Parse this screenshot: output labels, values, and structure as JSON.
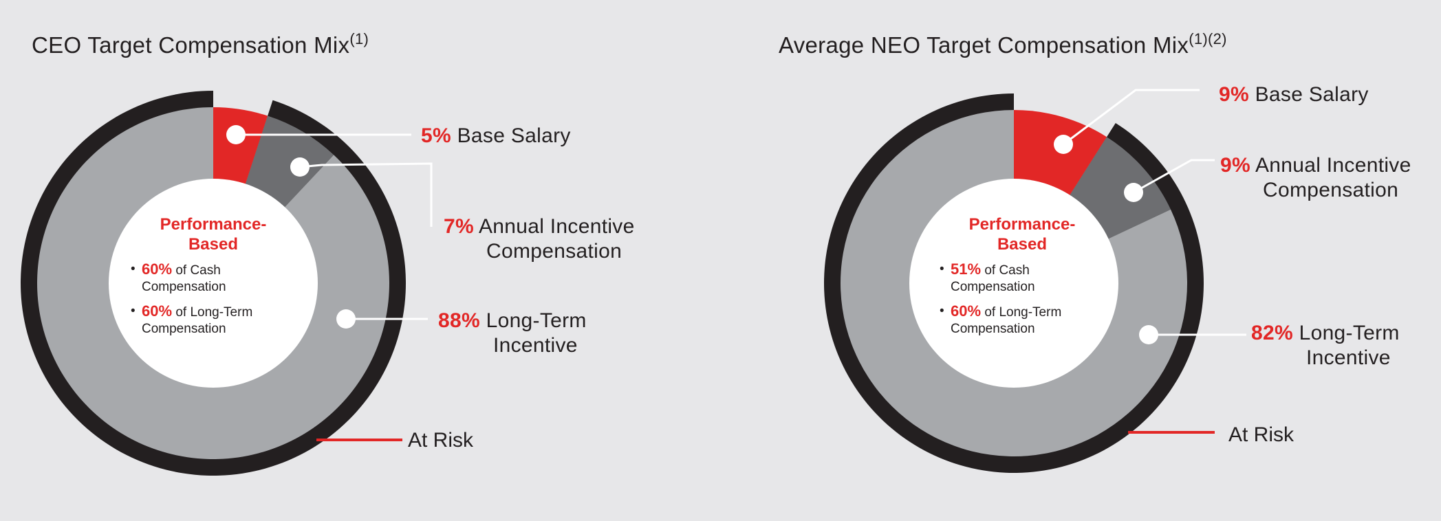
{
  "colors": {
    "background": "#e7e7e9",
    "base_salary": "#e22726",
    "annual_incentive": "#6d6e71",
    "long_term": "#a7a9ac",
    "at_risk_ring": "#231f20",
    "center": "#ffffff",
    "leader": "#ffffff",
    "at_risk_leader": "#e22726"
  },
  "chart_data": [
    {
      "type": "pie",
      "title": "CEO Target Compensation Mix",
      "title_sup": "(1)",
      "slices": [
        {
          "label": "Base Salary",
          "label_line2": "",
          "value": 5,
          "display": "5%"
        },
        {
          "label": "Annual Incentive",
          "label_line2": "Compensation",
          "value": 7,
          "display": "7%"
        },
        {
          "label": "Long-Term",
          "label_line2": "Incentive",
          "value": 88,
          "display": "88%"
        }
      ],
      "at_risk": {
        "label": "At Risk",
        "value": 95
      },
      "center": {
        "heading_line1": "Performance-",
        "heading_line2": "Based",
        "items": [
          {
            "pct": "60%",
            "text1": "of Cash",
            "text2": "Compensation"
          },
          {
            "pct": "60%",
            "text1": "of Long-Term",
            "text2": "Compensation"
          }
        ]
      }
    },
    {
      "type": "pie",
      "title": "Average NEO Target Compensation Mix",
      "title_sup": "(1)(2)",
      "slices": [
        {
          "label": "Base Salary",
          "label_line2": "",
          "value": 9,
          "display": "9%"
        },
        {
          "label": "Annual Incentive",
          "label_line2": "Compensation",
          "value": 9,
          "display": "9%"
        },
        {
          "label": "Long-Term",
          "label_line2": "Incentive",
          "value": 82,
          "display": "82%"
        }
      ],
      "at_risk": {
        "label": "At Risk",
        "value": 91
      },
      "center": {
        "heading_line1": "Performance-",
        "heading_line2": "Based",
        "items": [
          {
            "pct": "51%",
            "text1": "of Cash",
            "text2": "Compensation"
          },
          {
            "pct": "60%",
            "text1": "of Long-Term",
            "text2": "Compensation"
          }
        ]
      }
    }
  ]
}
